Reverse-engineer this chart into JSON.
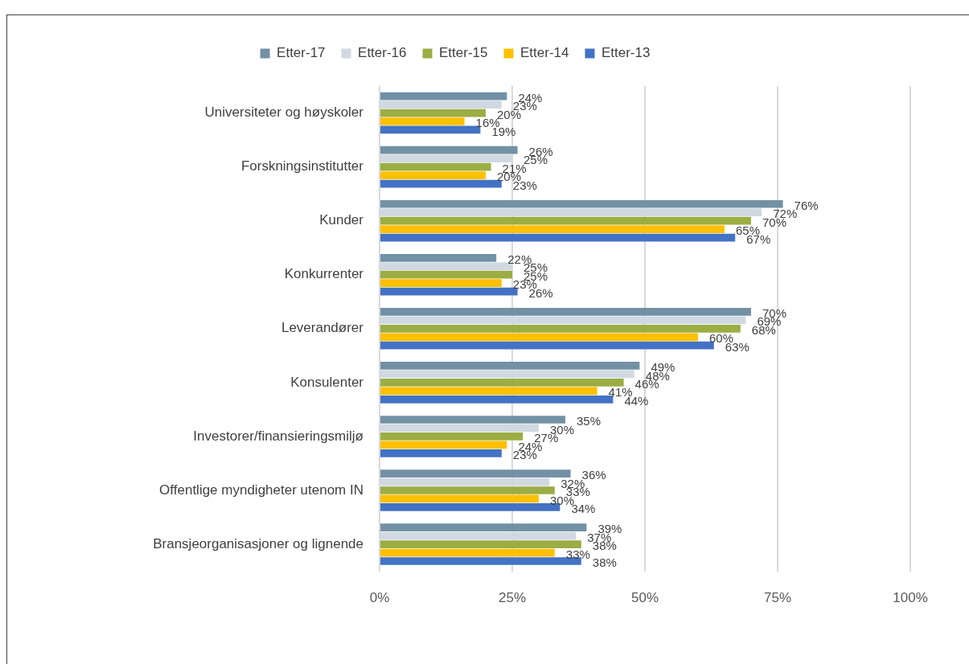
{
  "chart_data": {
    "type": "bar",
    "orientation": "horizontal",
    "categories": [
      "Universiteter og høyskoler",
      "Forskningsinstitutter",
      "Kunder",
      "Konkurrenter",
      "Leverandører",
      "Konsulenter",
      "Investorer/finansieringsmiljø",
      "Offentlige myndigheter utenom IN",
      "Bransjeorganisasjoner og lignende"
    ],
    "series": [
      {
        "name": "Etter-17",
        "color": "#7391a5",
        "values": [
          24,
          26,
          76,
          22,
          70,
          49,
          35,
          36,
          39
        ],
        "value_labels": [
          "24%",
          "26%",
          "76%",
          "22%",
          "70%",
          "49%",
          "35%",
          "36%",
          "39%"
        ]
      },
      {
        "name": "Etter-16",
        "color": "#d0d9e1",
        "values": [
          23,
          25,
          72,
          25,
          69,
          48,
          30,
          32,
          37
        ],
        "value_labels": [
          "23%",
          "25%",
          "72%",
          "25%",
          "69%",
          "48%",
          "30%",
          "32%",
          "37%"
        ]
      },
      {
        "name": "Etter-15",
        "color": "#9bad43",
        "values": [
          20,
          21,
          70,
          25,
          68,
          46,
          27,
          33,
          38
        ],
        "value_labels": [
          "20%",
          "21%",
          "70%",
          "25%",
          "68%",
          "46%",
          "27%",
          "33%",
          "38%"
        ]
      },
      {
        "name": "Etter-14",
        "color": "#ffc000",
        "values": [
          16,
          20,
          65,
          23,
          60,
          41,
          24,
          30,
          33
        ],
        "value_labels": [
          "16%",
          "20%",
          "65%",
          "23%",
          "60%",
          "41%",
          "24%",
          "30%",
          "33%"
        ]
      },
      {
        "name": "Etter-13",
        "color": "#4472c4",
        "values": [
          19,
          23,
          67,
          26,
          63,
          44,
          23,
          34,
          38
        ],
        "value_labels": [
          "19%",
          "23%",
          "67%",
          "26%",
          "63%",
          "44%",
          "23%",
          "34%",
          "38%"
        ]
      }
    ],
    "xlim": [
      0,
      100
    ],
    "xticks": [
      {
        "value": 0,
        "label": "0%"
      },
      {
        "value": 25,
        "label": "25%"
      },
      {
        "value": 50,
        "label": "50%"
      },
      {
        "value": 75,
        "label": "75%"
      },
      {
        "value": 100,
        "label": "100%"
      }
    ],
    "grid": "x",
    "legend": "top"
  }
}
